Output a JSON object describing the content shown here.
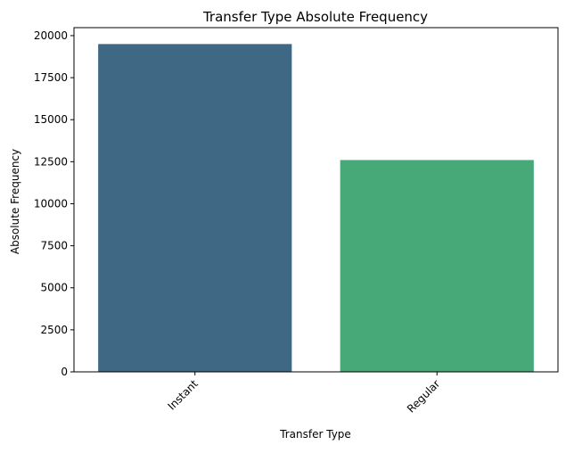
{
  "chart_data": {
    "type": "bar",
    "title": "Transfer Type Absolute Frequency",
    "xlabel": "Transfer Type",
    "ylabel": "Absolute Frequency",
    "categories": [
      "Instant",
      "Regular"
    ],
    "values": [
      19500,
      12600
    ],
    "colors": [
      "#3e6883",
      "#47a878"
    ],
    "ylim": [
      0,
      20475
    ],
    "yticks": [
      0,
      2500,
      5000,
      7500,
      10000,
      12500,
      15000,
      17500,
      20000
    ],
    "ytick_labels": [
      "0",
      "2500",
      "5000",
      "7500",
      "10000",
      "12500",
      "15000",
      "17500",
      "20000"
    ],
    "x_tick_rotation": 45,
    "grid": false,
    "legend": false
  }
}
